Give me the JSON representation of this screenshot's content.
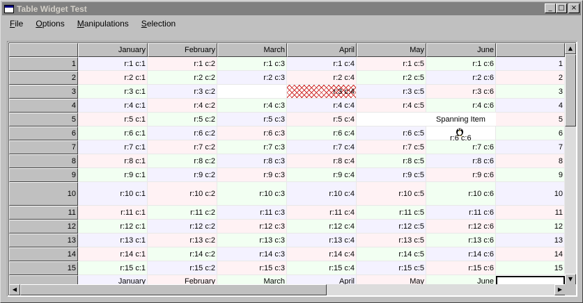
{
  "window": {
    "title": "Table Widget Test"
  },
  "titlebar": {
    "minimize": "_",
    "maximize": "□",
    "close": "×"
  },
  "menu": [
    {
      "label": "File",
      "key": "F",
      "rest": "ile"
    },
    {
      "label": "Options",
      "key": "O",
      "rest": "ptions"
    },
    {
      "label": "Manipulations",
      "key": "M",
      "rest": "anipulations"
    },
    {
      "label": "Selection",
      "key": "S",
      "rest": "election"
    }
  ],
  "table": {
    "columns": [
      "January",
      "February",
      "March",
      "April",
      "May",
      "June"
    ],
    "rows": [
      [
        "r:1 c:1",
        "r:1 c:2",
        "r:1 c:3",
        "r:1 c:4",
        "r:1 c:5",
        "r:1 c:6",
        "1"
      ],
      [
        "r:2 c:1",
        "r:2 c:2",
        "r:2 c:3",
        "r:2 c:4",
        "r:2 c:5",
        "r:2 c:6",
        "2"
      ],
      [
        "r:3 c:1",
        "r:3 c:2",
        "",
        "r:3 c:4",
        "r:3 c:5",
        "r:3 c:6",
        "3"
      ],
      [
        "r:4 c:1",
        "r:4 c:2",
        "r:4 c:3",
        "r:4 c:4",
        "r:4 c:5",
        "r:4 c:6",
        "4"
      ],
      [
        "r:5 c:1",
        "r:5 c:2",
        "r:5 c:3",
        "r:5 c:4",
        "",
        "",
        "5"
      ],
      [
        "r:6 c:1",
        "r:6 c:2",
        "r:6 c:3",
        "r:6 c:4",
        "r:6 c:5",
        "",
        "6"
      ],
      [
        "r:7 c:1",
        "r:7 c:2",
        "r:7 c:3",
        "r:7 c:4",
        "r:7 c:5",
        "r:7 c:6",
        "7"
      ],
      [
        "r:8 c:1",
        "r:8 c:2",
        "r:8 c:3",
        "r:8 c:4",
        "r:8 c:5",
        "r:8 c:6",
        "8"
      ],
      [
        "r:9 c:1",
        "r:9 c:2",
        "r:9 c:3",
        "r:9 c:4",
        "r:9 c:5",
        "r:9 c:6",
        "9"
      ],
      [
        "r:10 c:1",
        "r:10 c:2",
        "r:10 c:3",
        "r:10 c:4",
        "r:10 c:5",
        "r:10 c:6",
        "10"
      ],
      [
        "r:11 c:1",
        "r:11 c:2",
        "r:11 c:3",
        "r:11 c:4",
        "r:11 c:5",
        "r:11 c:6",
        "11"
      ],
      [
        "r:12 c:1",
        "r:12 c:2",
        "r:12 c:3",
        "r:12 c:4",
        "r:12 c:5",
        "r:12 c:6",
        "12"
      ],
      [
        "r:13 c:1",
        "r:13 c:2",
        "r:13 c:3",
        "r:13 c:4",
        "r:13 c:5",
        "r:13 c:6",
        "13"
      ],
      [
        "r:14 c:1",
        "r:14 c:2",
        "r:14 c:3",
        "r:14 c:4",
        "r:14 c:5",
        "r:14 c:6",
        "14"
      ],
      [
        "r:15 c:1",
        "r:15 c:2",
        "r:15 c:3",
        "r:15 c:4",
        "r:15 c:5",
        "r:15 c:6",
        "15"
      ]
    ],
    "row_labels": [
      "1",
      "2",
      "3",
      "4",
      "5",
      "6",
      "7",
      "8",
      "9",
      "10",
      "11",
      "12",
      "13",
      "14",
      "15"
    ],
    "footer": [
      "January",
      "February",
      "March",
      "April",
      "May",
      "June",
      ""
    ],
    "spanning_item": "Spanning Item",
    "r6c6_label": "r:6 c:6",
    "colors": {
      "lilac": "#f4f2ff",
      "pink": "#fff2f4",
      "green": "#f2fff2",
      "hatch": "#d03030"
    }
  }
}
